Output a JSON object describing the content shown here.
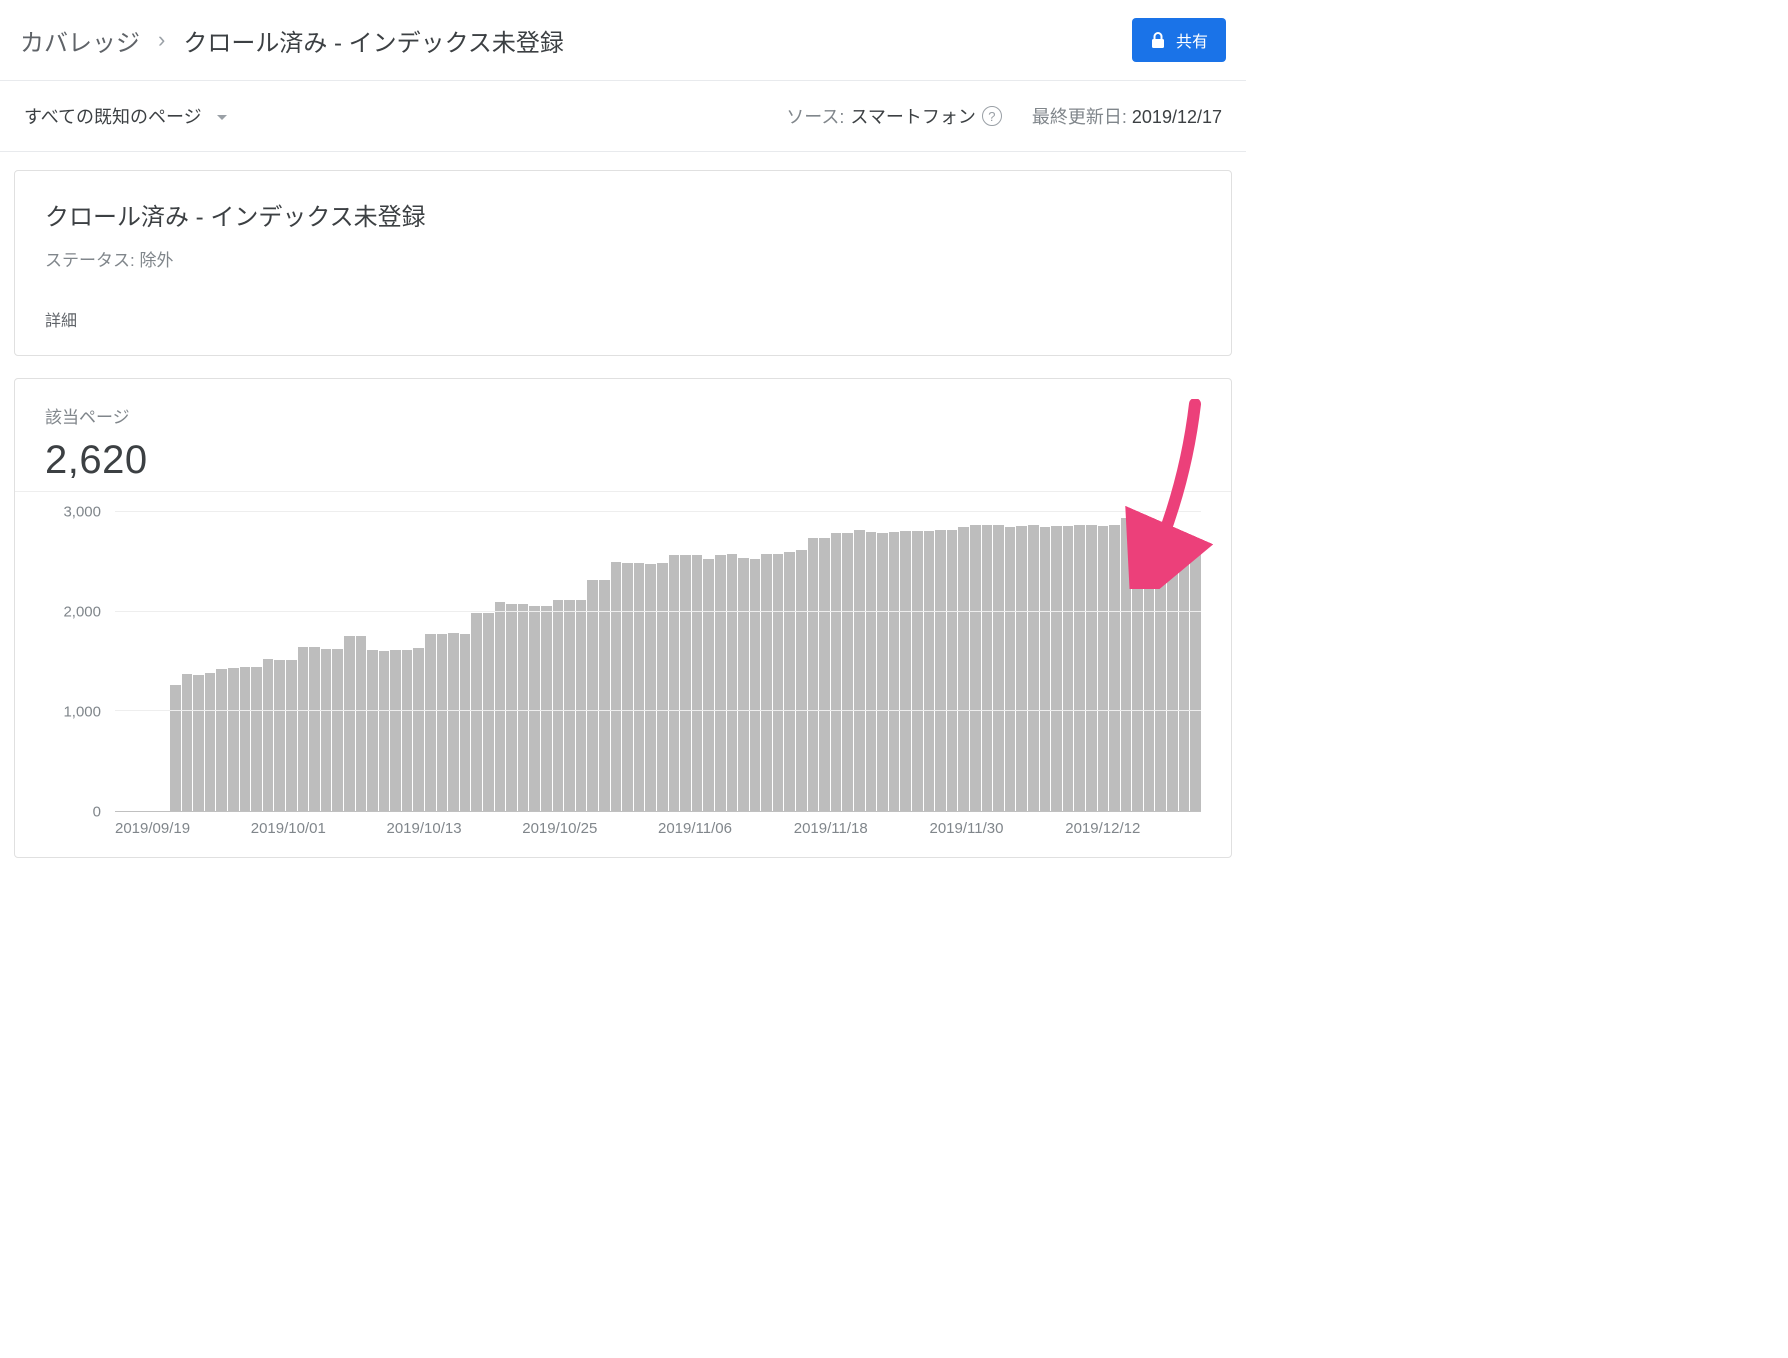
{
  "header": {
    "breadcrumb_root": "カバレッジ",
    "breadcrumb_current": "クロール済み - インデックス未登録",
    "share_label": "共有"
  },
  "subheader": {
    "dropdown_label": "すべての既知のページ",
    "source_label": "ソース:",
    "source_value": "スマートフォン",
    "updated_label": "最終更新日:",
    "updated_value": "2019/12/17"
  },
  "status_card": {
    "title": "クロール済み - インデックス未登録",
    "status_prefix": "ステータス:",
    "status_value": "除外",
    "details_label": "詳細"
  },
  "metric": {
    "label": "該当ページ",
    "value": "2,620"
  },
  "chart": {
    "type": "bar",
    "bar_color": "#bdbdbd",
    "grid_color": "#eeeeee",
    "axis_text_color": "#80868b",
    "background_color": "#ffffff",
    "ylim": [
      0,
      3000
    ],
    "ytick_step": 1000,
    "yticks": [
      "0",
      "1,000",
      "2,000",
      "3,000"
    ],
    "xticks": [
      "2019/09/19",
      "2019/10/01",
      "2019/10/13",
      "2019/10/25",
      "2019/11/06",
      "2019/11/18",
      "2019/11/30",
      "2019/12/12"
    ],
    "values": [
      1260,
      1370,
      1360,
      1380,
      1420,
      1430,
      1440,
      1440,
      1530,
      1520,
      1520,
      1650,
      1650,
      1630,
      1630,
      1760,
      1760,
      1620,
      1610,
      1620,
      1620,
      1640,
      1780,
      1780,
      1790,
      1780,
      1990,
      1990,
      2100,
      2080,
      2080,
      2060,
      2060,
      2120,
      2120,
      2120,
      2320,
      2320,
      2500,
      2490,
      2490,
      2480,
      2490,
      2570,
      2570,
      2570,
      2530,
      2570,
      2580,
      2540,
      2530,
      2580,
      2580,
      2600,
      2620,
      2740,
      2740,
      2790,
      2790,
      2820,
      2800,
      2790,
      2800,
      2810,
      2810,
      2810,
      2820,
      2820,
      2850,
      2870,
      2870,
      2870,
      2850,
      2860,
      2870,
      2850,
      2860,
      2860,
      2870,
      2870,
      2860,
      2870,
      2940,
      2940,
      2620,
      2620,
      2620,
      2620,
      2610
    ],
    "annotation_arrow_color": "#ec407a"
  }
}
